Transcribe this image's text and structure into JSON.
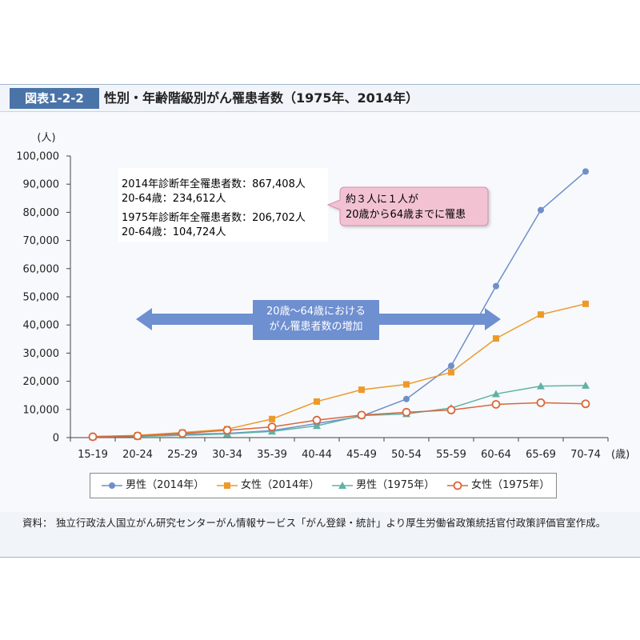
{
  "figure": {
    "label": "図表1-2-2",
    "title": "性別・年齢階級別がん罹患者数（1975年、2014年）"
  },
  "annotations": {
    "stats": [
      "2014年診断年全罹患者数：867,408人",
      "20-64歳：234,612人",
      "1975年診断年全罹患者数：206,702人",
      "20-64歳：104,724人"
    ],
    "callout": [
      "約３人に１人が",
      "20歳から64歳までに罹患"
    ],
    "arrow": [
      "20歳～64歳における",
      "がん罹患者数の増加"
    ]
  },
  "note": {
    "label": "資料：",
    "text": "独立行政法人国立がん研究センターがん情報サービス「がん登録・統計」より厚生労働省政策統括官付政策評価官室作成。"
  },
  "colors": {
    "male2014": "#6f8fc9",
    "female2014": "#ec9a2a",
    "male1975": "#5fb3a6",
    "female1975": "#d9673a"
  },
  "chart_data": {
    "type": "line",
    "ylabel": "(人)",
    "xunit": "(歳)",
    "ylim": [
      0,
      100000
    ],
    "yticks": [
      0,
      10000,
      20000,
      30000,
      40000,
      50000,
      60000,
      70000,
      80000,
      90000,
      100000
    ],
    "ytick_labels": [
      "0",
      "10,000",
      "20,000",
      "30,000",
      "40,000",
      "50,000",
      "60,000",
      "70,000",
      "80,000",
      "90,000",
      "100,000"
    ],
    "categories": [
      "15-19",
      "20-24",
      "25-29",
      "30-34",
      "35-39",
      "40-44",
      "45-49",
      "50-54",
      "55-59",
      "60-64",
      "65-69",
      "70-74"
    ],
    "series": [
      {
        "name": "男性（2014年）",
        "marker": "circle",
        "colorKey": "male2014",
        "values": [
          400,
          700,
          1200,
          1500,
          2500,
          5000,
          7600,
          13700,
          25500,
          53800,
          80800,
          94500
        ]
      },
      {
        "name": "女性（2014年）",
        "marker": "square",
        "colorKey": "female2014",
        "values": [
          300,
          800,
          1800,
          3000,
          6600,
          12800,
          17000,
          18900,
          23200,
          35200,
          43700,
          47500
        ]
      },
      {
        "name": "男性（1975年）",
        "marker": "triangle",
        "colorKey": "male1975",
        "values": [
          200,
          400,
          800,
          1300,
          2200,
          4200,
          7800,
          8400,
          10500,
          15500,
          18300,
          18500
        ]
      },
      {
        "name": "女性（1975年）",
        "marker": "ocircle",
        "colorKey": "female1975",
        "values": [
          300,
          600,
          1500,
          2600,
          3800,
          6200,
          8000,
          9000,
          9800,
          11800,
          12400,
          12000
        ]
      }
    ]
  }
}
